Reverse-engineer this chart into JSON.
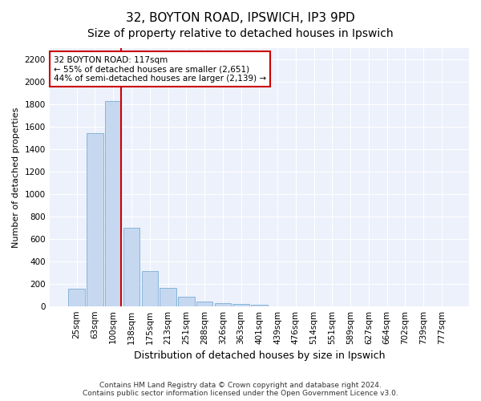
{
  "title1": "32, BOYTON ROAD, IPSWICH, IP3 9PD",
  "title2": "Size of property relative to detached houses in Ipswich",
  "xlabel": "Distribution of detached houses by size in Ipswich",
  "ylabel": "Number of detached properties",
  "categories": [
    "25sqm",
    "63sqm",
    "100sqm",
    "138sqm",
    "175sqm",
    "213sqm",
    "251sqm",
    "288sqm",
    "326sqm",
    "363sqm",
    "401sqm",
    "439sqm",
    "476sqm",
    "514sqm",
    "551sqm",
    "589sqm",
    "627sqm",
    "664sqm",
    "702sqm",
    "739sqm",
    "777sqm"
  ],
  "values": [
    155,
    1540,
    1830,
    700,
    315,
    160,
    80,
    42,
    27,
    20,
    12,
    0,
    0,
    0,
    0,
    0,
    0,
    0,
    0,
    0,
    0
  ],
  "bar_color": "#c5d8f0",
  "bar_edge_color": "#7aaed4",
  "vline_index": 2,
  "annotation_text": "32 BOYTON ROAD: 117sqm\n← 55% of detached houses are smaller (2,651)\n44% of semi-detached houses are larger (2,139) →",
  "annotation_box_color": "#ffffff",
  "annotation_box_edge_color": "#cc0000",
  "vline_color": "#cc0000",
  "ylim": [
    0,
    2300
  ],
  "yticks": [
    0,
    200,
    400,
    600,
    800,
    1000,
    1200,
    1400,
    1600,
    1800,
    2000,
    2200
  ],
  "footer1": "Contains HM Land Registry data © Crown copyright and database right 2024.",
  "footer2": "Contains public sector information licensed under the Open Government Licence v3.0.",
  "background_color": "#edf1fb",
  "grid_color": "#ffffff",
  "title_fontsize": 11,
  "subtitle_fontsize": 10,
  "ylabel_fontsize": 8,
  "xlabel_fontsize": 9,
  "tick_fontsize": 7.5,
  "annotation_fontsize": 7.5,
  "footer_fontsize": 6.5
}
